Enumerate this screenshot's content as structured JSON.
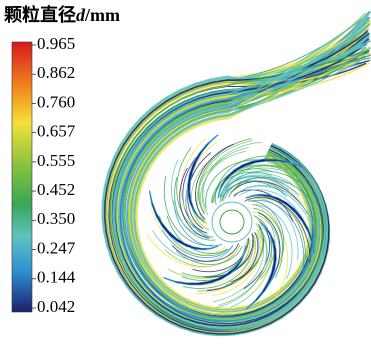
{
  "legend": {
    "title": {
      "text": "颗粒直径",
      "symbol": "d",
      "unit": "/mm"
    },
    "ticks": [
      "0.965",
      "0.862",
      "0.760",
      "0.657",
      "0.555",
      "0.452",
      "0.350",
      "0.247",
      "0.144",
      "0.042"
    ]
  }
}
